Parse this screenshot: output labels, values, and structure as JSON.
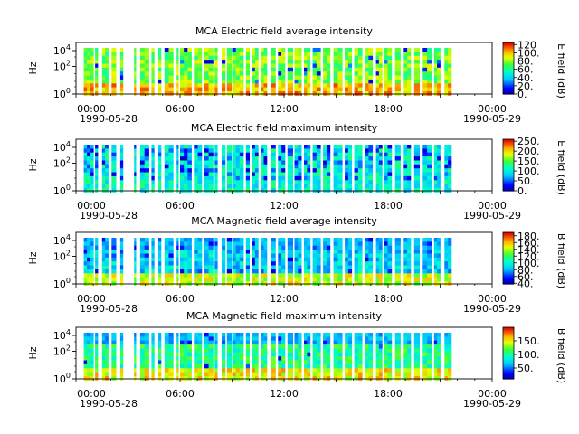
{
  "chart_data": [
    {
      "type": "heatmap",
      "title": "MCA  Electric field average intensity",
      "ylabel": "Hz",
      "y_ticks": [
        "10^0",
        "10^2",
        "10^4"
      ],
      "x_ticks": [
        "00:00",
        "06:00",
        "12:00",
        "18:00",
        "00:00"
      ],
      "date_labels": [
        "1990-05-28",
        "1990-05-29"
      ],
      "colorbar": {
        "label": "E field (dB)",
        "ticks": [
          "0.",
          "20.",
          "40.",
          "60.",
          "80.",
          "100.",
          "120"
        ],
        "range": [
          0,
          125
        ]
      },
      "grid": false
    },
    {
      "type": "heatmap",
      "title": "MCA  Electric field maximum intensity",
      "ylabel": "Hz",
      "y_ticks": [
        "10^0",
        "10^2",
        "10^4"
      ],
      "x_ticks": [
        "00:00",
        "06:00",
        "12:00",
        "18:00",
        "00:00"
      ],
      "date_labels": [
        "1990-05-28",
        "1990-05-29"
      ],
      "colorbar": {
        "label": "E field (dB)",
        "ticks": [
          "0.",
          "50.",
          "100.",
          "150.",
          "200.",
          "250."
        ],
        "range": [
          0,
          260
        ]
      },
      "grid": false
    },
    {
      "type": "heatmap",
      "title": "MCA  Magnetic field average intensity",
      "ylabel": "Hz",
      "y_ticks": [
        "10^0",
        "10^2",
        "10^4"
      ],
      "x_ticks": [
        "00:00",
        "06:00",
        "12:00",
        "18:00",
        "00:00"
      ],
      "date_labels": [
        "1990-05-28",
        "1990-05-29"
      ],
      "colorbar": {
        "label": "B field (dB)",
        "ticks": [
          "40.",
          "60.",
          "80.",
          "100.",
          "120.",
          "140.",
          "160.",
          "180."
        ],
        "range": [
          38,
          190
        ]
      },
      "grid": false
    },
    {
      "type": "heatmap",
      "title": "MCA  Magnetic field maximum intensity",
      "ylabel": "Hz",
      "y_ticks": [
        "10^0",
        "10^2",
        "10^4"
      ],
      "x_ticks": [
        "00:00",
        "06:00",
        "12:00",
        "18:00",
        "00:00"
      ],
      "date_labels": [
        "1990-05-28",
        "1990-05-29"
      ],
      "colorbar": {
        "label": "B field (dB)",
        "ticks": [
          "50.",
          "100.",
          "150."
        ],
        "range": [
          10,
          200
        ]
      },
      "grid": false
    }
  ]
}
